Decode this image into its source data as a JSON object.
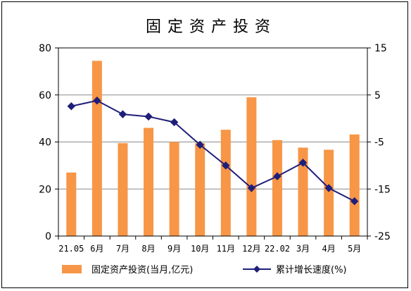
{
  "chart_data": {
    "type": "bar+line",
    "title": "固定资产投资",
    "categories": [
      "21.05",
      "6月",
      "7月",
      "8月",
      "9月",
      "10月",
      "11月",
      "12月",
      "22.02",
      "3月",
      "4月",
      "5月"
    ],
    "series": [
      {
        "name": "固定资产投资(当月,亿元)",
        "type": "bar",
        "axis": "left",
        "color": "#F79646",
        "values": [
          27,
          74.5,
          39.5,
          46,
          40,
          39.5,
          45.2,
          59,
          40.8,
          37.6,
          36.7,
          43.2
        ]
      },
      {
        "name": "累计增长速度(%)",
        "type": "line",
        "axis": "right",
        "color": "#1F1F7A",
        "marker": "diamond",
        "values": [
          2.6,
          3.8,
          0.9,
          0.4,
          -0.8,
          -5.6,
          -10,
          -14.8,
          -12.3,
          -9.4,
          -14.8,
          -17.6
        ]
      }
    ],
    "y_left": {
      "min": 0,
      "max": 80,
      "ticks": [
        0,
        20,
        40,
        60,
        80
      ]
    },
    "y_right": {
      "min": -25,
      "max": 15,
      "ticks": [
        -25,
        -15,
        -5,
        5,
        15
      ]
    },
    "grid": true,
    "legend": "bottom"
  }
}
